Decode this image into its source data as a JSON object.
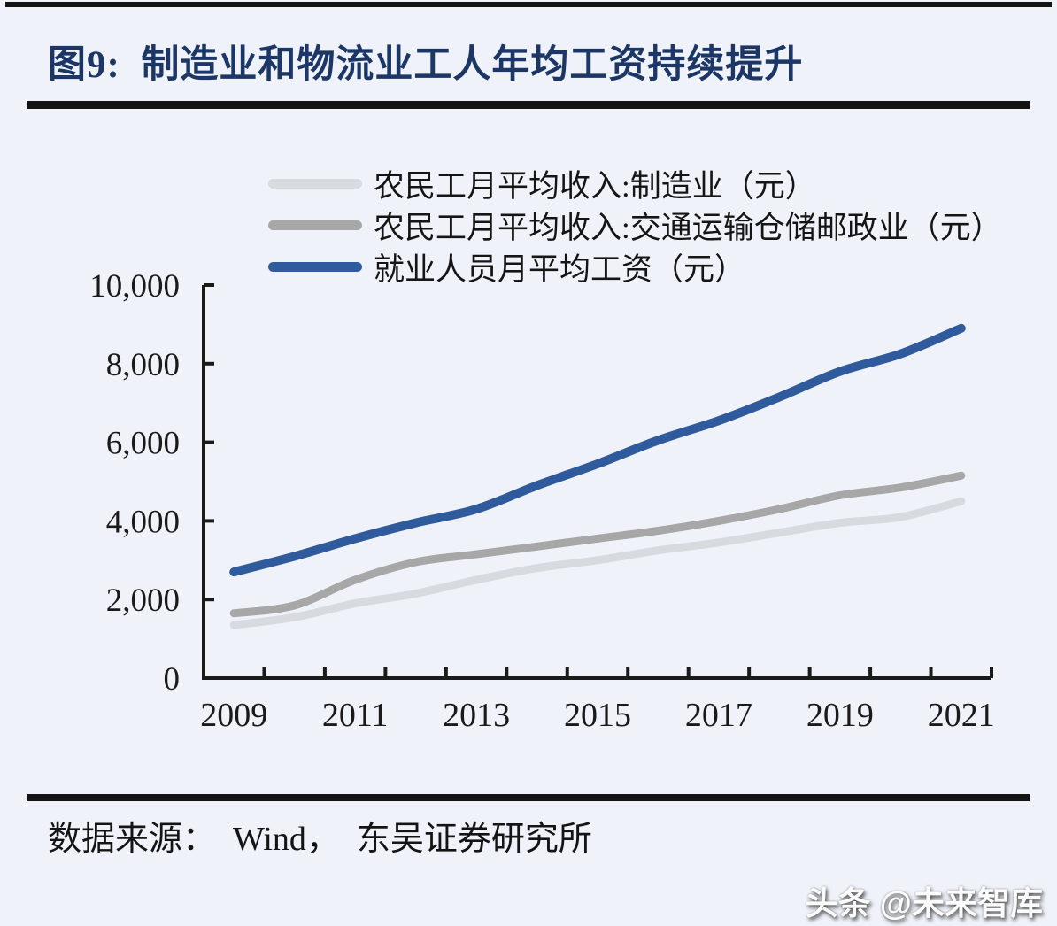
{
  "page": {
    "title": "图9:  制造业和物流业工人年均工资持续提升",
    "source_label": "数据来源：  Wind，  东吴证券研究所",
    "watermark": "头条 @未来智库"
  },
  "colors": {
    "title_navy": "#1c3766",
    "rule_black": "#141414",
    "axis_black": "#1a1a1a",
    "background": "#eff3f9",
    "series_manufacturing": "#d7dade",
    "series_transport": "#a7a7a7",
    "series_employed": "#2f5b9d"
  },
  "chart_data": {
    "type": "line",
    "title": "制造业和物流业工人年均工资持续提升",
    "xlabel": "",
    "ylabel": "",
    "x": [
      2009,
      2010,
      2011,
      2012,
      2013,
      2014,
      2015,
      2016,
      2017,
      2018,
      2019,
      2020,
      2021
    ],
    "x_tick_labels": [
      "2009",
      "2011",
      "2013",
      "2015",
      "2017",
      "2019",
      "2021"
    ],
    "y_ticks": [
      0,
      2000,
      4000,
      6000,
      8000,
      10000
    ],
    "y_tick_labels": [
      "0",
      "2,000",
      "4,000",
      "6,000",
      "8,000",
      "10,000"
    ],
    "ylim": [
      0,
      10000
    ],
    "grid": false,
    "legend_position": "top-center",
    "series": [
      {
        "name": "农民工月平均收入:制造业（元）",
        "color": "#d7dade",
        "stroke_width": 9,
        "values": [
          1350,
          1550,
          1900,
          2150,
          2500,
          2800,
          3000,
          3250,
          3450,
          3700,
          3950,
          4100,
          4500
        ]
      },
      {
        "name": "农民工月平均收入:交通运输仓储邮政业（元）",
        "color": "#a7a7a7",
        "stroke_width": 9,
        "values": [
          1650,
          1850,
          2500,
          2950,
          3150,
          3350,
          3550,
          3750,
          4000,
          4300,
          4650,
          4850,
          5150
        ]
      },
      {
        "name": "就业人员月平均工资（元）",
        "color": "#2f5b9d",
        "stroke_width": 10,
        "values": [
          2700,
          3100,
          3550,
          3950,
          4300,
          4900,
          5450,
          6050,
          6550,
          7150,
          7800,
          8250,
          8900
        ]
      }
    ]
  }
}
